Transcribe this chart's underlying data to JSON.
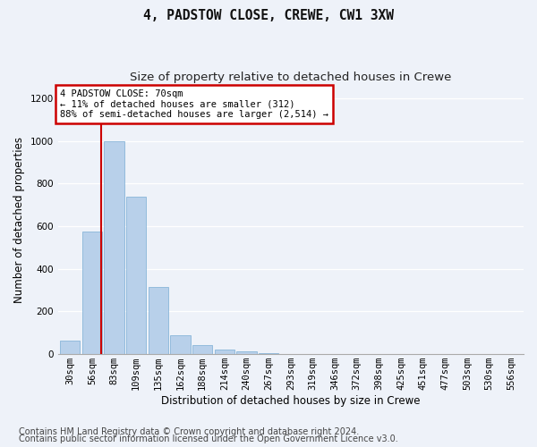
{
  "title1": "4, PADSTOW CLOSE, CREWE, CW1 3XW",
  "title2": "Size of property relative to detached houses in Crewe",
  "xlabel": "Distribution of detached houses by size in Crewe",
  "ylabel": "Number of detached properties",
  "categories": [
    "30sqm",
    "56sqm",
    "83sqm",
    "109sqm",
    "135sqm",
    "162sqm",
    "188sqm",
    "214sqm",
    "240sqm",
    "267sqm",
    "293sqm",
    "319sqm",
    "346sqm",
    "372sqm",
    "398sqm",
    "425sqm",
    "451sqm",
    "477sqm",
    "503sqm",
    "530sqm",
    "556sqm"
  ],
  "values": [
    65,
    575,
    1000,
    740,
    315,
    90,
    42,
    22,
    13,
    4,
    1,
    0,
    0,
    0,
    0,
    0,
    0,
    0,
    0,
    0,
    0
  ],
  "bar_color": "#b8d0ea",
  "bar_edge_color": "#7aadd4",
  "vline_x_index": 1.43,
  "vline_color": "#cc0000",
  "annotation_text": "4 PADSTOW CLOSE: 70sqm\n← 11% of detached houses are smaller (312)\n88% of semi-detached houses are larger (2,514) →",
  "annotation_box_facecolor": "#ffffff",
  "annotation_box_edgecolor": "#cc0000",
  "ylim": [
    0,
    1260
  ],
  "yticks": [
    0,
    200,
    400,
    600,
    800,
    1000,
    1200
  ],
  "footer1": "Contains HM Land Registry data © Crown copyright and database right 2024.",
  "footer2": "Contains public sector information licensed under the Open Government Licence v3.0.",
  "background_color": "#eef2f9",
  "grid_color": "#ffffff",
  "title1_fontsize": 10.5,
  "title2_fontsize": 9.5,
  "xlabel_fontsize": 8.5,
  "ylabel_fontsize": 8.5,
  "tick_fontsize": 7.5,
  "annotation_fontsize": 7.5,
  "footer_fontsize": 7.0
}
